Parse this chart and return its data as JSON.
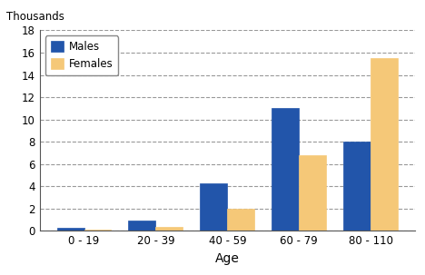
{
  "categories": [
    "0 - 19",
    "20 - 39",
    "40 - 59",
    "60 - 79",
    "80 - 110"
  ],
  "males": [
    0.25,
    0.9,
    4.3,
    11.0,
    8.0
  ],
  "females": [
    0.1,
    0.35,
    2.0,
    6.8,
    15.5
  ],
  "male_color": "#2255aa",
  "female_color": "#f5c878",
  "xlabel": "Age",
  "ylabel": "Thousands",
  "ylim": [
    0,
    18
  ],
  "yticks": [
    0,
    2,
    4,
    6,
    8,
    10,
    12,
    14,
    16,
    18
  ],
  "legend_labels": [
    "Males",
    "Females"
  ],
  "bar_width": 0.38,
  "background_color": "#ffffff",
  "grid_color": "#999999",
  "spine_color": "#555555"
}
